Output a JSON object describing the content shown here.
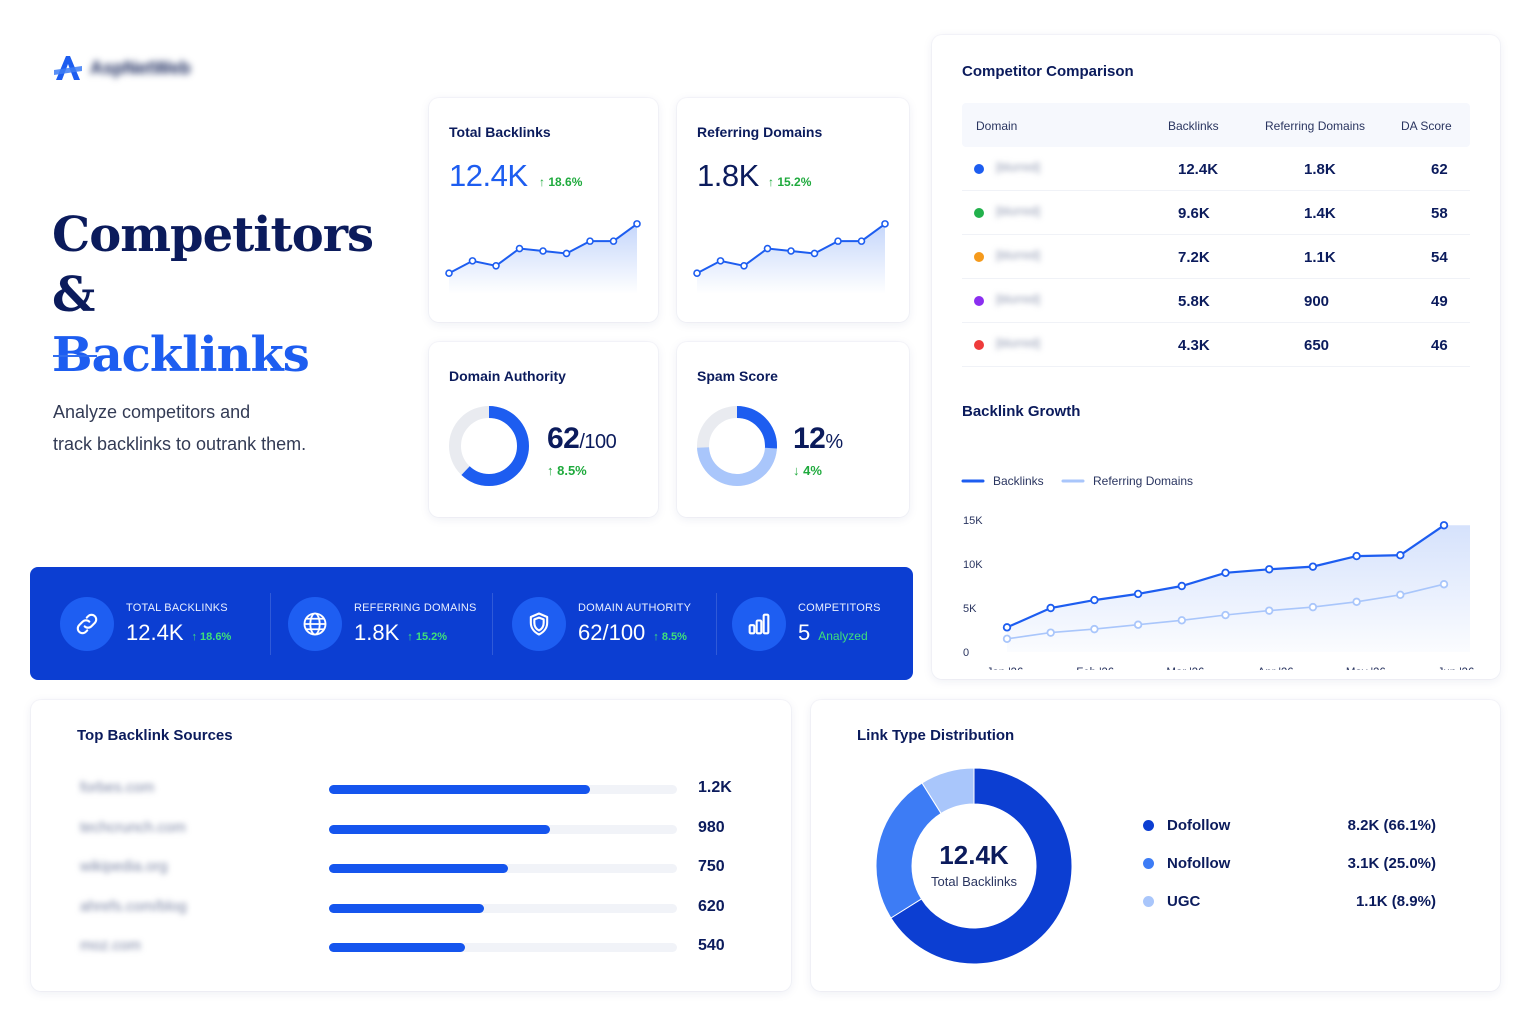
{
  "brand": {
    "name": "AspNetWeb",
    "icon": "logo-a-icon",
    "color": "#1d5df0"
  },
  "hero": {
    "title_line1": "Competitors &",
    "title_line2": "Backlinks",
    "description_line1": "Analyze competitors and",
    "description_line2": "track backlinks to outrank them."
  },
  "colors": {
    "primary": "#1d5df0",
    "navy": "#0b1b5c",
    "banner": "#0c3ed2",
    "positive": "#1faa3d",
    "light_blue": "#a9c6fb"
  },
  "metric_cards": {
    "total_backlinks": {
      "title": "Total Backlinks",
      "value": "12.4K",
      "change": "↑ 18.6%",
      "trend": [
        6,
        11,
        9,
        16,
        15,
        14,
        19,
        19,
        26
      ]
    },
    "referring_domains": {
      "title": "Referring Domains",
      "value": "1.8K",
      "change": "↑ 15.2%",
      "trend": [
        6,
        11,
        9,
        16,
        15,
        14,
        19,
        19,
        26
      ]
    },
    "domain_authority": {
      "title": "Domain Authority",
      "value": "62",
      "suffix": "/100",
      "change": "↑ 8.5%",
      "fraction": 0.62
    },
    "spam_score": {
      "title": "Spam Score",
      "value": "12",
      "suffix": "%",
      "change": "↓ 4%",
      "fraction": 0.12
    }
  },
  "banner": {
    "items": [
      {
        "icon": "link-icon",
        "label": "TOTAL BACKLINKS",
        "value": "12.4K",
        "change": "↑ 18.6%"
      },
      {
        "icon": "globe-icon",
        "label": "REFERRING DOMAINS",
        "value": "1.8K",
        "change": "↑ 15.2%"
      },
      {
        "icon": "shield-icon",
        "label": "DOMAIN AUTHORITY",
        "value": "62/100",
        "change": "↑ 8.5%"
      },
      {
        "icon": "bar-chart-icon",
        "label": "COMPETITORS",
        "value": "5",
        "change": "Analyzed"
      }
    ]
  },
  "competitor_comparison": {
    "title": "Competitor Comparison",
    "columns": [
      "Domain",
      "Backlinks",
      "Referring Domains",
      "DA Score"
    ],
    "rows": [
      {
        "color": "#1d5df0",
        "domain": "[blurred]",
        "backlinks": "12.4K",
        "referring_domains": "1.8K",
        "da": "62"
      },
      {
        "color": "#22b14c",
        "domain": "[blurred]",
        "backlinks": "9.6K",
        "referring_domains": "1.4K",
        "da": "58"
      },
      {
        "color": "#f59a1c",
        "domain": "[blurred]",
        "backlinks": "7.2K",
        "referring_domains": "1.1K",
        "da": "54"
      },
      {
        "color": "#8b2ff0",
        "domain": "[blurred]",
        "backlinks": "5.8K",
        "referring_domains": "900",
        "da": "49"
      },
      {
        "color": "#ee3b3b",
        "domain": "[blurred]",
        "backlinks": "4.3K",
        "referring_domains": "650",
        "da": "46"
      }
    ]
  },
  "backlink_growth": {
    "title": "Backlink Growth",
    "legend": [
      "Backlinks",
      "Referring Domains"
    ],
    "y_ticks": [
      "15K",
      "10K",
      "5K",
      "0"
    ],
    "x_ticks": [
      "Jan '26",
      "Feb '26",
      "Mar '26",
      "Apr '26",
      "May '26",
      "Jun '26"
    ]
  },
  "top_sources": {
    "title": "Top Backlink Sources",
    "items": [
      {
        "domain": "forbes.com",
        "value": "1.2K",
        "fraction": 0.75
      },
      {
        "domain": "techcrunch.com",
        "value": "980",
        "fraction": 0.635
      },
      {
        "domain": "wikipedia.org",
        "value": "750",
        "fraction": 0.515
      },
      {
        "domain": "ahrefs.com/blog",
        "value": "620",
        "fraction": 0.445
      },
      {
        "domain": "moz.com",
        "value": "540",
        "fraction": 0.39
      }
    ]
  },
  "link_type": {
    "title": "Link Type Distribution",
    "center_value": "12.4K",
    "center_label": "Total Backlinks",
    "items": [
      {
        "name": "Dofollow",
        "value": "8.2K (66.1%)",
        "color": "#0c3ed2"
      },
      {
        "name": "Nofollow",
        "value": "3.1K (25.0%)",
        "color": "#3d7cf5"
      },
      {
        "name": "UGC",
        "value": "1.1K (8.9%)",
        "color": "#a9c6fb"
      }
    ]
  },
  "chart_data": [
    {
      "type": "line",
      "title": "Backlink Growth",
      "x": [
        "Jan '26",
        "Jan '26+",
        "Feb '26",
        "Feb '26+",
        "Mar '26",
        "Mar '26+",
        "Apr '26",
        "Apr '26+",
        "May '26",
        "May '26+",
        "Jun '26"
      ],
      "xlabel": "",
      "ylabel": "",
      "ylim": [
        0,
        15000
      ],
      "series": [
        {
          "name": "Backlinks",
          "values": [
            2800,
            5000,
            5900,
            6600,
            7500,
            9000,
            9400,
            9700,
            10900,
            11000,
            14400
          ],
          "color": "#1d5df0"
        },
        {
          "name": "Referring Domains",
          "values": [
            1500,
            2200,
            2600,
            3100,
            3600,
            4200,
            4700,
            5100,
            5700,
            6500,
            7700
          ],
          "color": "#a9c6fb"
        }
      ],
      "x_tick_labels": [
        "Jan '26",
        "Feb '26",
        "Mar '26",
        "Apr '26",
        "May '26",
        "Jun '26"
      ],
      "grid": false,
      "legend_position": "top-left"
    },
    {
      "type": "pie",
      "title": "Link Type Distribution",
      "categories": [
        "Dofollow",
        "Nofollow",
        "UGC"
      ],
      "values": [
        66.1,
        25.0,
        8.9
      ]
    }
  ]
}
